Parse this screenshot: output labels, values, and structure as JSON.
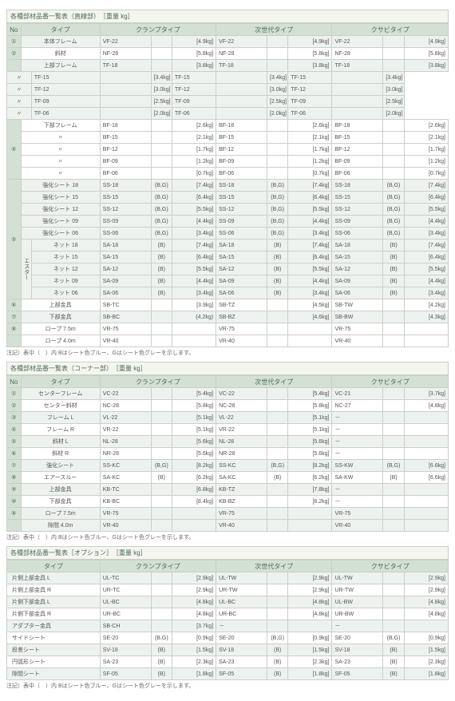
{
  "palette": {
    "header_bg": "#d4e0d4",
    "header_fg": "#4a6a5a",
    "odd_row": "#eef2ee",
    "even_row": "#ffffff",
    "border": "#c8d0c8",
    "text": "#555555"
  },
  "section1": {
    "title": "各種部材品番一覧表（直線部）　［重量 kg］",
    "headers": {
      "no": "No",
      "type": "タイプ",
      "c1": "クランプタイプ",
      "c2": "次世代タイプ",
      "c3": "クサビタイプ"
    },
    "rows": [
      {
        "no": "①",
        "type": "本体フレーム",
        "c": [
          [
            "VF-22",
            "",
            "[4.9kg]"
          ],
          [
            "VF-22",
            "",
            "[4.9kg]"
          ],
          [
            "VF-22",
            "",
            "[4.9kg]"
          ]
        ],
        "cls": "odd"
      },
      {
        "no": "②",
        "type": "斜材",
        "c": [
          [
            "NF-28",
            "",
            "[5.8kg]"
          ],
          [
            "NF-28",
            "",
            "[5.8kg]"
          ],
          [
            "NF-28",
            "",
            "[5.8kg]"
          ]
        ],
        "cls": "even"
      },
      {
        "no": "",
        "type": "上部フレーム",
        "c": [
          [
            "TF-18",
            "",
            "[3.8kg]"
          ],
          [
            "TF-18",
            "",
            "[3.8kg]"
          ],
          [
            "TF-18",
            "",
            "[3.8kg]"
          ]
        ],
        "cls": "odd",
        "rs": 5,
        "no_val": "③"
      },
      {
        "type": "〃",
        "c": [
          [
            "TF-15",
            "",
            "[3.4kg]"
          ],
          [
            "TF-15",
            "",
            "[3.4kg]"
          ],
          [
            "TF-15",
            "",
            "[3.4kg]"
          ]
        ],
        "cls": "odd"
      },
      {
        "type": "〃",
        "c": [
          [
            "TF-12",
            "",
            "[3.0kg]"
          ],
          [
            "TF-12",
            "",
            "[3.0kg]"
          ],
          [
            "TF-12",
            "",
            "[3.0kg]"
          ]
        ],
        "cls": "odd"
      },
      {
        "type": "〃",
        "c": [
          [
            "TF-09",
            "",
            "[2.5kg]"
          ],
          [
            "TF-09",
            "",
            "[2.5kg]"
          ],
          [
            "TF-09",
            "",
            "[2.5kg]"
          ]
        ],
        "cls": "odd"
      },
      {
        "type": "〃",
        "c": [
          [
            "TF-06",
            "",
            "[2.0kg]"
          ],
          [
            "TF-06",
            "",
            "[2.0kg]"
          ],
          [
            "TF-06",
            "",
            "[2.0kg]"
          ]
        ],
        "cls": "odd"
      },
      {
        "no_val": "④",
        "rs": 5,
        "type": "下部フレーム",
        "c": [
          [
            "BF-18",
            "",
            "[2.6kg]"
          ],
          [
            "BF-18",
            "",
            "[2.6kg]"
          ],
          [
            "BF-18",
            "",
            "[2.6kg]"
          ]
        ],
        "cls": "even"
      },
      {
        "type": "〃",
        "c": [
          [
            "BF-15",
            "",
            "[2.1kg]"
          ],
          [
            "BF-15",
            "",
            "[2.1kg]"
          ],
          [
            "BF-15",
            "",
            "[2.1kg]"
          ]
        ],
        "cls": "even"
      },
      {
        "type": "〃",
        "c": [
          [
            "BF-12",
            "",
            "[1.7kg]"
          ],
          [
            "BF-12",
            "",
            "[1.7kg]"
          ],
          [
            "BF-12",
            "",
            "[1.7kg]"
          ]
        ],
        "cls": "even"
      },
      {
        "type": "〃",
        "c": [
          [
            "BF-09",
            "",
            "[1.2kg]"
          ],
          [
            "BF-09",
            "",
            "[1.2kg]"
          ],
          [
            "BF-09",
            "",
            "[1.2kg]"
          ]
        ],
        "cls": "even"
      },
      {
        "type": "〃",
        "c": [
          [
            "BF-06",
            "",
            "[0.7kg]"
          ],
          [
            "BF-06",
            "",
            "[0.7kg]"
          ],
          [
            "BF-06",
            "",
            "[0.7kg]"
          ]
        ],
        "cls": "even"
      }
    ],
    "group5": {
      "no": "⑤",
      "vgroup": "エスター",
      "rows": [
        {
          "sub": "",
          "type": "強化シート 18",
          "c": [
            [
              "SS-18",
              "(B,G)",
              "[7.4kg]"
            ],
            [
              "SS-18",
              "(B,G)",
              "[7.4kg]"
            ],
            [
              "SS-18",
              "(B,G)",
              "[7.4kg]"
            ]
          ]
        },
        {
          "sub": "",
          "type": "強化シート 15",
          "c": [
            [
              "SS-15",
              "(B,G)",
              "[6.4kg]"
            ],
            [
              "SS-15",
              "(B,G)",
              "[6.4kg]"
            ],
            [
              "SS-15",
              "(B,G)",
              "[6.4kg]"
            ]
          ]
        },
        {
          "sub": "",
          "type": "強化シート 12",
          "c": [
            [
              "SS-12",
              "(B,G)",
              "[5.5kg]"
            ],
            [
              "SS-12",
              "(B,G)",
              "[5.5kg]"
            ],
            [
              "SS-12",
              "(B,G)",
              "[5.5kg]"
            ]
          ]
        },
        {
          "sub": "",
          "type": "強化シート 09",
          "c": [
            [
              "SS-09",
              "(B,G)",
              "[4.4kg]"
            ],
            [
              "SS-09",
              "(B,G)",
              "[4.4kg]"
            ],
            [
              "SS-09",
              "(B,G)",
              "[4.4kg]"
            ]
          ]
        },
        {
          "sub": "",
          "type": "強化シート 06",
          "c": [
            [
              "SS-06",
              "(B,G)",
              "[3.4kg]"
            ],
            [
              "SS-06",
              "(B,G)",
              "[3.4kg]"
            ],
            [
              "SS-06",
              "(B,G)",
              "[3.4kg]"
            ]
          ]
        },
        {
          "sub": "v",
          "type": "ネット 18",
          "c": [
            [
              "SA-18",
              "(B)",
              "[7.4kg]"
            ],
            [
              "SA-18",
              "(B)",
              "[7.4kg]"
            ],
            [
              "SA-18",
              "(B)",
              "[7.4kg]"
            ]
          ]
        },
        {
          "sub": "v",
          "type": "ネット 15",
          "c": [
            [
              "SA-15",
              "(B)",
              "[6.4kg]"
            ],
            [
              "SA-15",
              "(B)",
              "[6.4kg]"
            ],
            [
              "SA-15",
              "(B)",
              "[6.4kg]"
            ]
          ]
        },
        {
          "sub": "v",
          "type": "ネット 12",
          "c": [
            [
              "SA-12",
              "(B)",
              "[5.5kg]"
            ],
            [
              "SA-12",
              "(B)",
              "[5.5kg]"
            ],
            [
              "SA-12",
              "(B)",
              "[5.5kg]"
            ]
          ]
        },
        {
          "sub": "v",
          "type": "ネット 09",
          "c": [
            [
              "SA-09",
              "(B)",
              "[4.4kg]"
            ],
            [
              "SA-09",
              "(B)",
              "[4.4kg]"
            ],
            [
              "SA-09",
              "(B)",
              "[4.4kg]"
            ]
          ]
        },
        {
          "sub": "v",
          "type": "ネット 06",
          "c": [
            [
              "SA-06",
              "(B)",
              "[3.4kg]"
            ],
            [
              "SA-06",
              "(B)",
              "[3.4kg]"
            ],
            [
              "SA-06",
              "(B)",
              "[3.4kg]"
            ]
          ]
        }
      ]
    },
    "tail": [
      {
        "no": "⑥",
        "type": "上部金具",
        "c": [
          [
            "SB-TC",
            "",
            "[3.9kg]"
          ],
          [
            "SB-TZ",
            "",
            "[4.5kg]"
          ],
          [
            "SB-TW",
            "",
            "[4.2kg]"
          ]
        ],
        "cls": "even"
      },
      {
        "no": "⑦",
        "type": "下部金具",
        "c": [
          [
            "SB-BC",
            "",
            "(4.2kg)"
          ],
          [
            "SB-BZ",
            "",
            "[4.6kg]"
          ],
          [
            "SB-BW",
            "",
            "[4.3kg]"
          ]
        ],
        "cls": "odd"
      },
      {
        "no": "⑧",
        "type": "ロープ 7.5m",
        "c": [
          [
            "VR-75",
            "",
            ""
          ],
          [
            "VR-75",
            "",
            ""
          ],
          [
            "VR-75",
            "",
            ""
          ]
        ],
        "cls": "even"
      },
      {
        "no": "",
        "type": "ロープ 4.0m",
        "c": [
          [
            "VR-40",
            "",
            ""
          ],
          [
            "VR-40",
            "",
            ""
          ],
          [
            "VR-40",
            "",
            ""
          ]
        ],
        "cls": "even"
      }
    ],
    "note": "注記）表中（　）内 Bはシート色ブルー、Gはシート色グレーを示します。"
  },
  "section2": {
    "title": "各種部材品番一覧表（コーナー部）　［重量 kg］",
    "headers": {
      "no": "No",
      "type": "タイプ",
      "c1": "クランプタイプ",
      "c2": "次世代タイプ",
      "c3": "クサビタイプ"
    },
    "rows": [
      {
        "no": "①",
        "type": "センターフレーム",
        "c": [
          [
            "VC-22",
            "",
            "[5.4kg]"
          ],
          [
            "VC-22",
            "",
            "[5.4kg]"
          ],
          [
            "VC-21",
            "",
            "[3.7kg]"
          ]
        ],
        "cls": "odd"
      },
      {
        "no": "②",
        "type": "センター斜材",
        "c": [
          [
            "NC-28",
            "",
            "[5.8kg]"
          ],
          [
            "NC-28",
            "",
            "[5.8kg]"
          ],
          [
            "NC-27",
            "",
            "[4.8kg]"
          ]
        ],
        "cls": "even"
      },
      {
        "no": "③",
        "type": "フレーム L",
        "c": [
          [
            "VL-22",
            "",
            "[5.1kg]"
          ],
          [
            "VL-22",
            "",
            "[5.1kg]"
          ],
          [
            "－",
            "",
            ""
          ]
        ],
        "cls": "odd"
      },
      {
        "no": "④",
        "type": "フレーム R",
        "c": [
          [
            "VR-22",
            "",
            "[5.1kg]"
          ],
          [
            "VR-22",
            "",
            "[5.1kg]"
          ],
          [
            "－",
            "",
            ""
          ]
        ],
        "cls": "even"
      },
      {
        "no": "⑤",
        "type": "斜材 L",
        "c": [
          [
            "NL-28",
            "",
            "[5.6kg]"
          ],
          [
            "NL-28",
            "",
            "[5.6kg]"
          ],
          [
            "－",
            "",
            ""
          ]
        ],
        "cls": "odd"
      },
      {
        "no": "⑥",
        "type": "斜材 R",
        "c": [
          [
            "NR-28",
            "",
            "[5.6kg]"
          ],
          [
            "NR-28",
            "",
            "[5.6kg]"
          ],
          [
            "－",
            "",
            ""
          ]
        ],
        "cls": "even"
      },
      {
        "no": "⑦",
        "type": "強化シート",
        "c": [
          [
            "SS-KC",
            "(B,G)",
            "[8.2kg]"
          ],
          [
            "SS-KC",
            "(B,G)",
            "[8.2kg]"
          ],
          [
            "SS-KW",
            "(B,G)",
            "[6.6kg]"
          ]
        ],
        "cls": "odd"
      },
      {
        "no": "⑧",
        "type": "エアースルー",
        "c": [
          [
            "SA-KC",
            "(B)",
            "[6.2kg]"
          ],
          [
            "SA-KC",
            "(B)",
            "[6.2kg]"
          ],
          [
            "SA-KW",
            "(B)",
            "[6.6kg]"
          ]
        ],
        "cls": "even"
      },
      {
        "no": "⑨",
        "type": "上部金具",
        "c": [
          [
            "KB-TC",
            "",
            "[6.8kg]"
          ],
          [
            "KB-TZ",
            "",
            "[7.8kg]"
          ],
          [
            "－",
            "",
            ""
          ]
        ],
        "cls": "odd"
      },
      {
        "no": "⑩",
        "type": "下部金具",
        "c": [
          [
            "KB-BC",
            "",
            "[8.4kg]"
          ],
          [
            "KB-BZ",
            "",
            "[8.2kg]"
          ],
          [
            "－",
            "",
            ""
          ]
        ],
        "cls": "even"
      },
      {
        "no": "⑧",
        "type": "ロープ 7.5m",
        "c": [
          [
            "VR-75",
            "",
            ""
          ],
          [
            "VR-75",
            "",
            ""
          ],
          [
            "VR-75",
            "",
            ""
          ]
        ],
        "cls": "odd"
      },
      {
        "no": "",
        "type": "隙間 4.0m",
        "c": [
          [
            "VR-40",
            "",
            ""
          ],
          [
            "VR-40",
            "",
            ""
          ],
          [
            "VR-40",
            "",
            ""
          ]
        ],
        "cls": "odd"
      }
    ],
    "note": "注記）表中（　）内 Bはシート色ブルー、Gはシート色グレーを示します。"
  },
  "section3": {
    "title": "各種部材品番一覧表［オプション］　［重量 kg］",
    "headers": {
      "type": "タイプ",
      "c1": "クランプタイプ",
      "c2": "次世代タイプ",
      "c3": "クサビタイプ"
    },
    "rows": [
      {
        "type": "片側上部金具 L",
        "c": [
          [
            "UL-TC",
            "",
            "[2.9kg]"
          ],
          [
            "UL-TW",
            "",
            "[2.9kg]"
          ],
          [
            "UL-TW",
            "",
            "[2.9kg]"
          ]
        ],
        "cls": "odd"
      },
      {
        "type": "片側上部金具 R",
        "c": [
          [
            "UR-TC",
            "",
            "[2.9kg]"
          ],
          [
            "UR-TW",
            "",
            "[2.9kg]"
          ],
          [
            "UR-TW",
            "",
            "[2.9kg]"
          ]
        ],
        "cls": "even"
      },
      {
        "type": "片側下部金具 L",
        "c": [
          [
            "UL-BC",
            "",
            "[4.8kg]"
          ],
          [
            "UL-BC",
            "",
            "[4.8kg]"
          ],
          [
            "UL-BW",
            "",
            "[4.8kg]"
          ]
        ],
        "cls": "odd"
      },
      {
        "type": "片側下部金具 R",
        "c": [
          [
            "UR-BC",
            "",
            "[4.8kg]"
          ],
          [
            "UR-BC",
            "",
            "[4.8kg]"
          ],
          [
            "UR-BW",
            "",
            "[4.8kg]"
          ]
        ],
        "cls": "even"
      },
      {
        "type": "アダプター金具",
        "c": [
          [
            "SB-CH",
            "",
            "[3.7kg]"
          ],
          [
            "－",
            "",
            ""
          ],
          [
            "－",
            "",
            ""
          ]
        ],
        "cls": "odd"
      },
      {
        "type": "サイドシート",
        "c": [
          [
            "SE-20",
            "(B,G)",
            "[0.9kg]"
          ],
          [
            "SE-20",
            "(B,G)",
            "[0.9kg]"
          ],
          [
            "SE-20",
            "(B,G)",
            "[0.9kg]"
          ]
        ],
        "cls": "even"
      },
      {
        "type": "段差シート",
        "c": [
          [
            "SV-18",
            "(B)",
            "[1.5kg]"
          ],
          [
            "SV-18",
            "(B)",
            "[1.5kg]"
          ],
          [
            "SV-18",
            "(B)",
            "[1.5kg]"
          ]
        ],
        "cls": "odd"
      },
      {
        "type": "円弧形シート",
        "c": [
          [
            "SA-23",
            "(B)",
            "[2.3kg]"
          ],
          [
            "SA-23",
            "(B)",
            "[2.3kg]"
          ],
          [
            "SA-23",
            "(B)",
            "[2.3kg]"
          ]
        ],
        "cls": "even"
      },
      {
        "type": "隙間シート",
        "c": [
          [
            "SF-05",
            "(B)",
            "[1.8kg]"
          ],
          [
            "SF-05",
            "(B)",
            "[1.8kg]"
          ],
          [
            "SF-05",
            "(B)",
            "[1.8kg]"
          ]
        ],
        "cls": "odd"
      }
    ],
    "note": "注記）表中（　）内 Bはシート色ブルー、Gはシート色グレーを示します。"
  }
}
